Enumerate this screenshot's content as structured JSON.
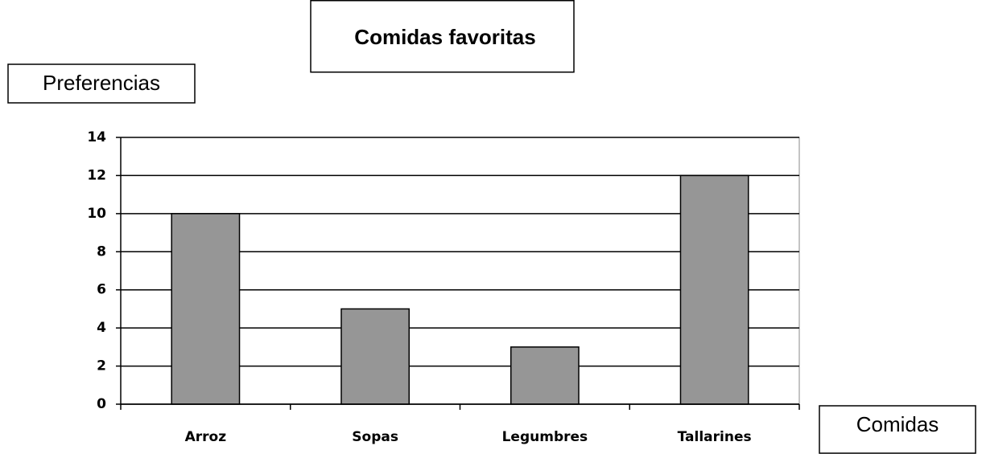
{
  "chart_data": {
    "type": "bar",
    "title": "Comidas favoritas",
    "y_label": "Preferencias",
    "x_label": "Comidas",
    "categories": [
      "Arroz",
      "Sopas",
      "Legumbres",
      "Tallarines"
    ],
    "values": [
      10,
      5,
      3,
      12
    ],
    "color": "#969696",
    "ylim": [
      0,
      14
    ],
    "yticks": [
      0,
      2,
      4,
      6,
      8,
      10,
      12,
      14
    ],
    "grid": true
  }
}
